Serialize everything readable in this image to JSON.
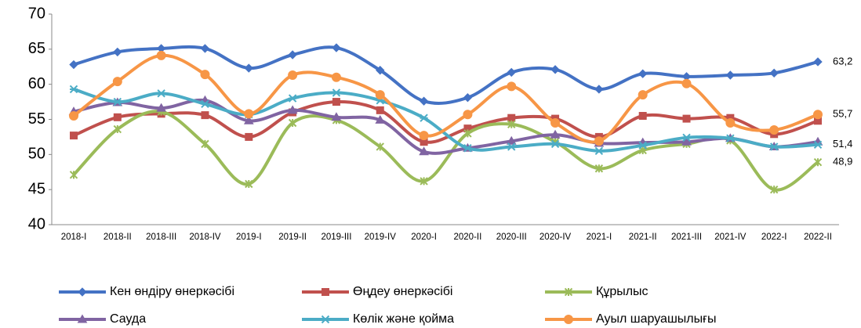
{
  "chart_data": {
    "type": "line",
    "categories": [
      "2018-I",
      "2018-II",
      "2018-III",
      "2018-IV",
      "2019-I",
      "2019-II",
      "2019-III",
      "2019-IV",
      "2020-I",
      "2020-II",
      "2020-III",
      "2020-IV",
      "2021-I",
      "2021-II",
      "2021-III",
      "2021-IV",
      "2022-I",
      "2022-II"
    ],
    "ylim": [
      40,
      70
    ],
    "yticks": [
      40,
      45,
      50,
      55,
      60,
      65,
      70
    ],
    "grid": false,
    "smooth": true,
    "legend": "bottom",
    "series": [
      {
        "name": "Кен өндіру өнеркәсібі",
        "color": "#4472c4",
        "marker": "diamond",
        "values": [
          62.8,
          64.6,
          65.1,
          65.1,
          62.3,
          64.2,
          65.2,
          62.0,
          57.6,
          58.1,
          61.7,
          62.1,
          59.3,
          61.5,
          61.1,
          61.3,
          61.6,
          63.2
        ],
        "value_labels": [
          null,
          null,
          null,
          null,
          null,
          null,
          null,
          null,
          null,
          null,
          null,
          null,
          null,
          null,
          null,
          null,
          null,
          "63,2"
        ]
      },
      {
        "name": "Өңдеу өнеркәсібі",
        "color": "#c0504d",
        "marker": "square",
        "values": [
          52.7,
          55.3,
          55.8,
          55.6,
          52.5,
          56.0,
          57.5,
          56.3,
          51.8,
          53.7,
          55.2,
          55.1,
          52.5,
          55.5,
          55.1,
          55.2,
          52.9,
          54.8
        ]
      },
      {
        "name": "Құрылыс",
        "color": "#9bbb59",
        "marker": "cross",
        "values": [
          47.1,
          53.6,
          56.1,
          51.5,
          45.8,
          54.5,
          54.9,
          51.1,
          46.2,
          53.0,
          54.3,
          51.8,
          48.0,
          50.6,
          51.5,
          52.0,
          45.0,
          48.9
        ],
        "value_labels": [
          null,
          null,
          null,
          null,
          null,
          null,
          null,
          null,
          null,
          null,
          null,
          null,
          null,
          null,
          null,
          null,
          null,
          "48,9"
        ]
      },
      {
        "name": "Сауда",
        "color": "#8064a2",
        "marker": "triangle",
        "values": [
          56.1,
          57.4,
          56.6,
          57.7,
          54.8,
          56.3,
          55.3,
          54.9,
          50.4,
          50.9,
          51.9,
          52.8,
          51.6,
          51.7,
          51.8,
          52.3,
          51.1,
          51.8
        ]
      },
      {
        "name": "Көлік және қойма",
        "color": "#4bacc6",
        "marker": "star",
        "values": [
          59.3,
          57.5,
          58.7,
          57.2,
          55.7,
          58.0,
          58.8,
          57.7,
          55.2,
          50.9,
          51.1,
          51.5,
          50.5,
          51.3,
          52.4,
          52.3,
          51.1,
          51.4
        ],
        "value_labels": [
          null,
          null,
          null,
          null,
          null,
          null,
          null,
          null,
          null,
          null,
          null,
          null,
          null,
          null,
          null,
          null,
          null,
          "51,4"
        ]
      },
      {
        "name": "Ауыл шаруашылығы",
        "color": "#f79646",
        "marker": "circle",
        "values": [
          55.5,
          60.4,
          64.1,
          61.4,
          55.8,
          61.3,
          61.0,
          58.5,
          52.7,
          55.7,
          59.7,
          54.5,
          51.9,
          58.5,
          60.1,
          54.5,
          53.5,
          55.7
        ],
        "value_labels": [
          null,
          null,
          null,
          null,
          null,
          null,
          null,
          null,
          null,
          null,
          null,
          null,
          null,
          null,
          null,
          null,
          null,
          "55,7"
        ]
      }
    ]
  }
}
